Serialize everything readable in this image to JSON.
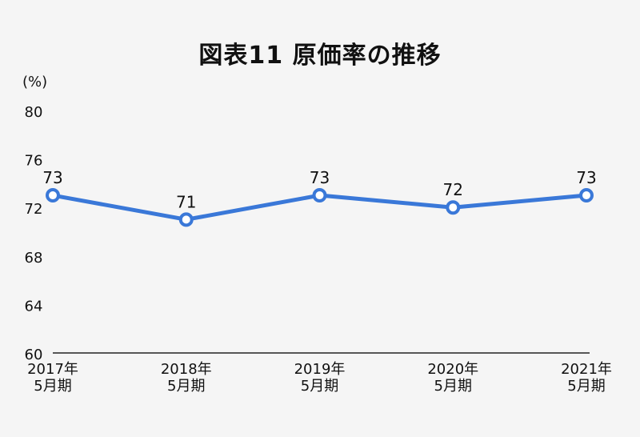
{
  "chart_data": {
    "type": "line",
    "title": "図表11 原価率の推移",
    "ylabel": "(%)",
    "xlabel": "",
    "categories": [
      [
        "2017年",
        "5月期"
      ],
      [
        "2018年",
        "5月期"
      ],
      [
        "2019年",
        "5月期"
      ],
      [
        "2020年",
        "5月期"
      ],
      [
        "2021年",
        "5月期"
      ]
    ],
    "values": [
      73,
      71,
      73,
      72,
      73
    ],
    "data_labels": [
      "73",
      "71",
      "73",
      "72",
      "73"
    ],
    "ylim": [
      60,
      80
    ],
    "yticks": [
      60,
      64,
      68,
      72,
      76,
      80
    ],
    "grid": false,
    "legend": "none",
    "colors": {
      "line": "#3a78d8",
      "marker_fill": "#ffffff",
      "axis": "#222222",
      "text": "#111111"
    }
  }
}
